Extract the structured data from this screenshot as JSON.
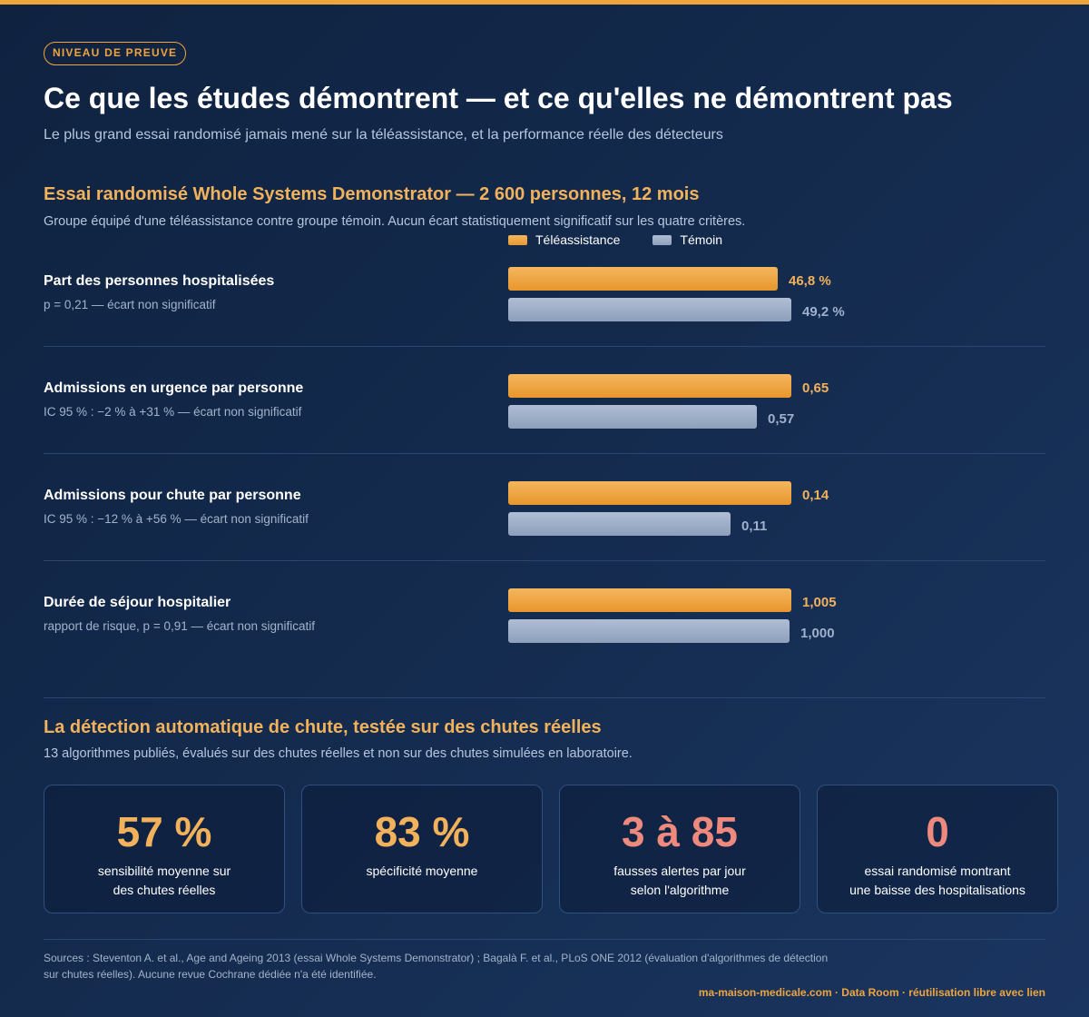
{
  "badge": "NIVEAU DE PREUVE",
  "title": "Ce que les études démontrent — et ce qu'elles ne démontrent pas",
  "subtitle": "Le plus grand essai randomisé jamais mené sur la téléassistance, et la performance réelle des détecteurs",
  "trial": {
    "title": "Essai randomisé Whole Systems Demonstrator — 2 600 personnes, 12 mois",
    "description": "Groupe équipé d'une téléassistance contre groupe témoin. Aucun écart statistiquement significatif sur les quatre critères.",
    "legend": {
      "tele": "Téléassistance",
      "temoin": "Témoin"
    },
    "rows": [
      {
        "label": "Part des personnes hospitalisées",
        "note": "p = 0,21 — écart non significatif",
        "tele_label": "46,8 %",
        "temoin_label": "49,2 %"
      },
      {
        "label": "Admissions en urgence par personne",
        "note": "IC 95 % : −2 % à +31 % — écart non significatif",
        "tele_label": "0,65",
        "temoin_label": "0,57"
      },
      {
        "label": "Admissions pour chute par personne",
        "note": "IC 95 % : −12 % à +56 % — écart non significatif",
        "tele_label": "0,14",
        "temoin_label": "0,11"
      },
      {
        "label": "Durée de séjour hospitalier",
        "note": "rapport de risque, p = 0,91 — écart non significatif",
        "tele_label": "1,005",
        "temoin_label": "1,000"
      }
    ]
  },
  "chart_data": {
    "type": "bar",
    "orientation": "horizontal",
    "title": "Essai randomisé Whole Systems Demonstrator — 2 600 personnes, 12 mois",
    "categories": [
      "Part des personnes hospitalisées",
      "Admissions en urgence par personne",
      "Admissions pour chute par personne",
      "Durée de séjour hospitalier"
    ],
    "series": [
      {
        "name": "Téléassistance",
        "values": [
          46.8,
          0.65,
          0.14,
          1.005
        ],
        "color": "#f0a53c"
      },
      {
        "name": "Témoin",
        "values": [
          49.2,
          0.57,
          0.11,
          1.0
        ],
        "color": "#9fb0ca"
      }
    ],
    "legend_position": "top",
    "grid": false
  },
  "detection": {
    "title": "La détection automatique de chute, testée sur des chutes réelles",
    "description": "13 algorithmes publiés, évalués sur des chutes réelles et non sur des chutes simulées en laboratoire.",
    "cards": [
      {
        "value": "57 %",
        "label_line1": "sensibilité moyenne sur",
        "label_line2": "des chutes réelles",
        "color": "#f2b25c"
      },
      {
        "value": "83 %",
        "label_line1": "spécificité moyenne",
        "label_line2": "",
        "color": "#f2b25c"
      },
      {
        "value": "3 à 85",
        "label_line1": "fausses alertes par jour",
        "label_line2": "selon l'algorithme",
        "color": "#ee8a7d"
      },
      {
        "value": "0",
        "label_line1": "essai randomisé montrant",
        "label_line2": "une baisse des hospitalisations",
        "color": "#ee8a7d"
      }
    ]
  },
  "sources": "Sources : Steventon A. et al., Age and Ageing 2013 (essai Whole Systems Demonstrator) ; Bagalà F. et al., PLoS ONE 2012 (évaluation d'algorithmes de détection sur chutes réelles). Aucune revue Cochrane dédiée n'a été identifiée.",
  "footer": "ma-maison-medicale.com · Data Room · réutilisation libre avec lien",
  "colors": {
    "accent": "#f0a53c",
    "background": "#142b4e",
    "alert": "#ee8a7d"
  }
}
